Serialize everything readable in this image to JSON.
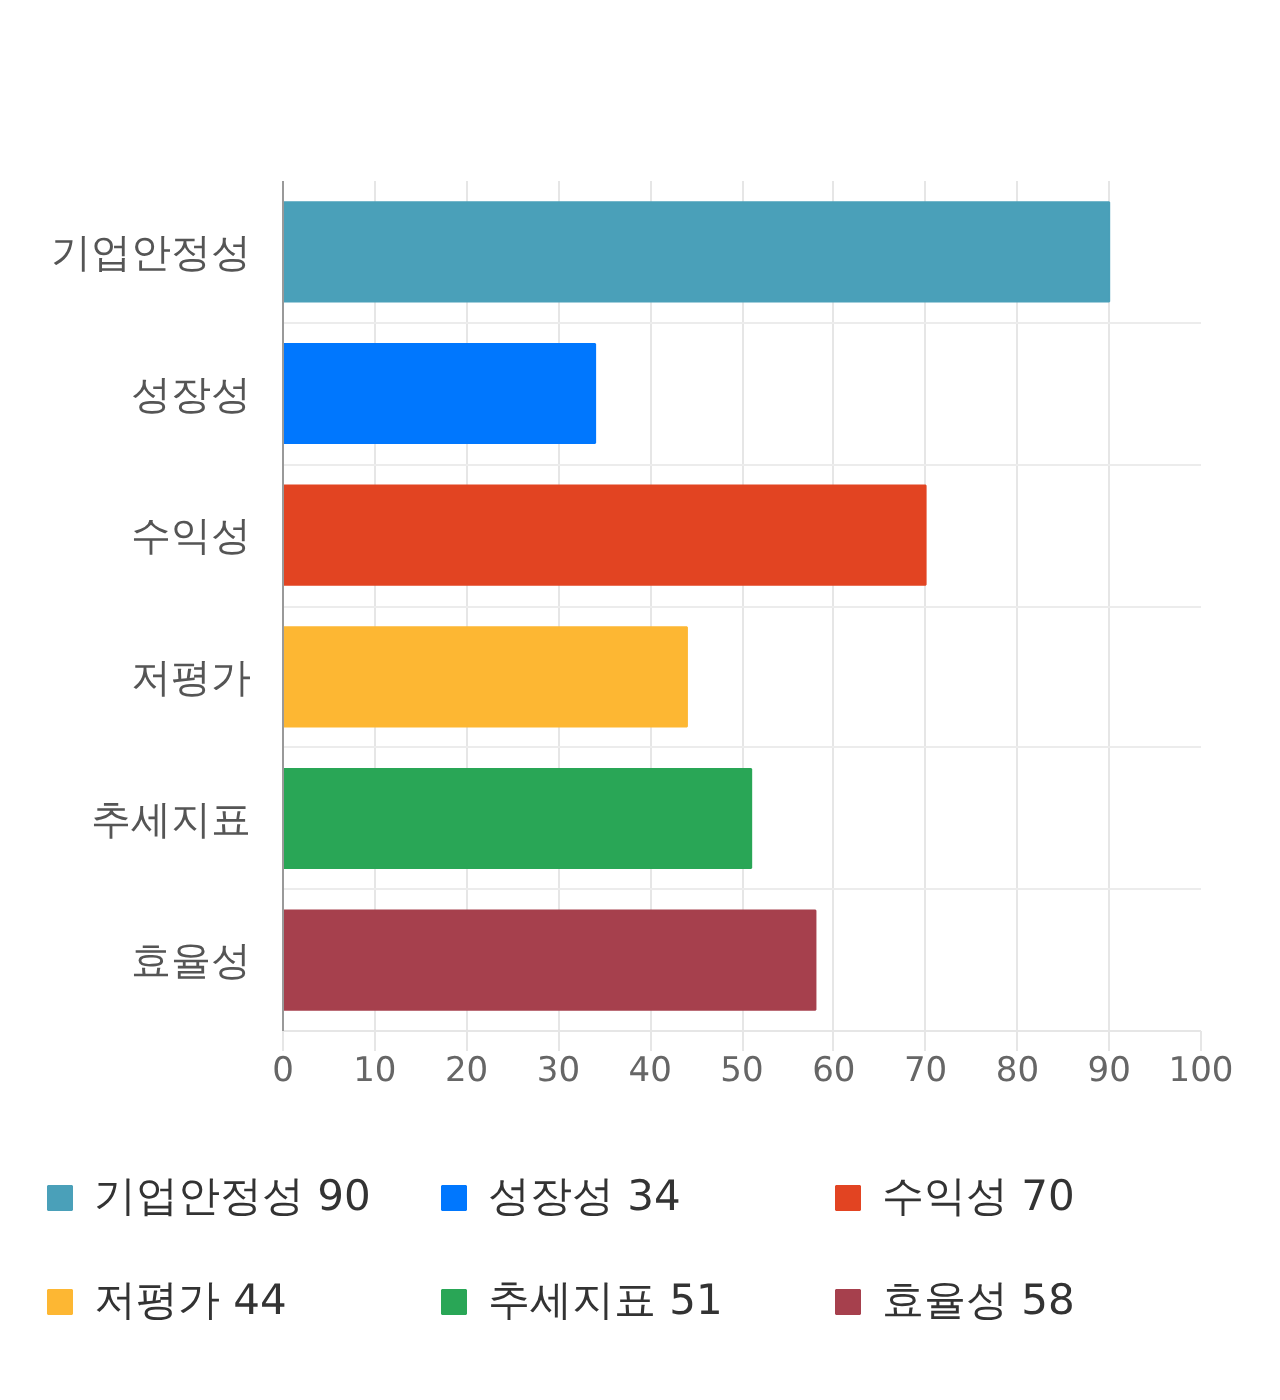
{
  "chart_data": {
    "type": "bar",
    "orientation": "horizontal",
    "categories": [
      "기업안정성",
      "성장성",
      "수익성",
      "저평가",
      "추세지표",
      "효율성"
    ],
    "series": [
      {
        "name": "기업안정성 90",
        "color": "#4aa0b9",
        "values": [
          90,
          null,
          null,
          null,
          null,
          null
        ]
      },
      {
        "name": "성장성 34",
        "color": "#0077fe",
        "values": [
          null,
          34,
          null,
          null,
          null,
          null
        ]
      },
      {
        "name": "수익성 70",
        "color": "#e24422",
        "values": [
          null,
          null,
          70,
          null,
          null,
          null
        ]
      },
      {
        "name": "저평가 44",
        "color": "#fdb733",
        "values": [
          null,
          null,
          null,
          44,
          null,
          null
        ]
      },
      {
        "name": "추세지표 51",
        "color": "#29a656",
        "values": [
          null,
          null,
          null,
          null,
          51,
          null
        ]
      },
      {
        "name": "효율성 58",
        "color": "#a6404d",
        "values": [
          null,
          null,
          null,
          null,
          null,
          58
        ]
      }
    ],
    "xlim": [
      0,
      100
    ],
    "xticks": [
      0,
      10,
      20,
      30,
      40,
      50,
      60,
      70,
      80,
      90,
      100
    ],
    "grid": true,
    "legend": "bottom"
  }
}
